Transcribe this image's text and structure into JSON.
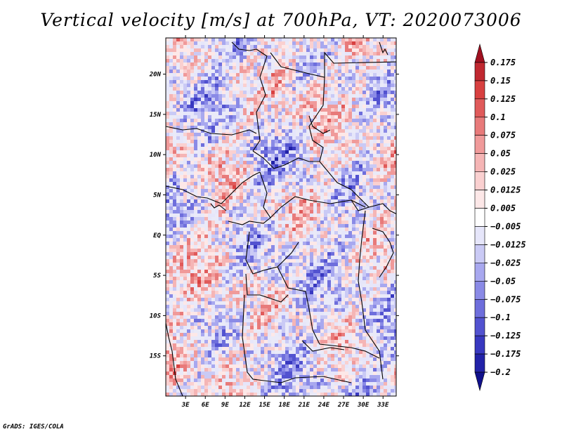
{
  "chart_data": {
    "type": "heatmap",
    "title": "Vertical velocity [m/s] at 700hPa, VT: 2020073006",
    "variable": "Vertical velocity",
    "units": "m/s",
    "level": "700hPa",
    "valid_time": "2020073006",
    "xlabel": "",
    "ylabel": "",
    "xlim": [
      0,
      35
    ],
    "ylim": [
      -20,
      24.5
    ],
    "x_ticks": [
      {
        "value": 3,
        "label": "3E"
      },
      {
        "value": 6,
        "label": "6E"
      },
      {
        "value": 9,
        "label": "9E"
      },
      {
        "value": 12,
        "label": "12E"
      },
      {
        "value": 15,
        "label": "15E"
      },
      {
        "value": 18,
        "label": "18E"
      },
      {
        "value": 21,
        "label": "21E"
      },
      {
        "value": 24,
        "label": "24E"
      },
      {
        "value": 27,
        "label": "27E"
      },
      {
        "value": 30,
        "label": "30E"
      },
      {
        "value": 33,
        "label": "33E"
      }
    ],
    "y_ticks": [
      {
        "value": 20,
        "label": "20N"
      },
      {
        "value": 15,
        "label": "15N"
      },
      {
        "value": 10,
        "label": "10N"
      },
      {
        "value": 5,
        "label": "5N"
      },
      {
        "value": 0,
        "label": "EQ"
      },
      {
        "value": -5,
        "label": "5S"
      },
      {
        "value": -10,
        "label": "10S"
      },
      {
        "value": -15,
        "label": "15S"
      }
    ],
    "colorbar": {
      "labels": [
        "0.175",
        "0.15",
        "0.125",
        "0.1",
        "0.075",
        "0.05",
        "0.025",
        "0.0125",
        "0.005",
        "−0.005",
        "−0.0125",
        "−0.025",
        "−0.05",
        "−0.075",
        "−0.1",
        "−0.125",
        "−0.175",
        "−0.2"
      ],
      "colors": [
        "#a01020",
        "#c02830",
        "#d84040",
        "#e05a5a",
        "#e87a7a",
        "#f09a9a",
        "#f5b5b5",
        "#fad0d0",
        "#fde8e8",
        "#ffffff",
        "#e6e6fa",
        "#cacaf5",
        "#a8a8ef",
        "#8a8ae6",
        "#6e6edc",
        "#5252d0",
        "#3838c0",
        "#2222a8",
        "#10108c"
      ]
    },
    "grid": false
  },
  "footer": "GrADS: IGES/COLA"
}
